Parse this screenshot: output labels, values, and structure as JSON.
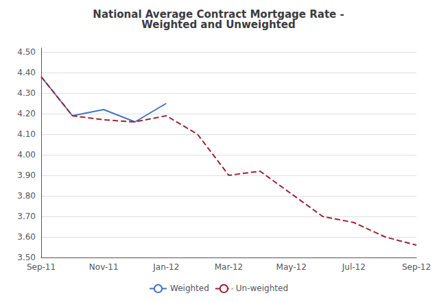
{
  "chart_data": {
    "type": "line",
    "title": "National Average Contract Mortgage Rate -\nWeighted and Unweighted",
    "categories": [
      "Sep-11",
      null,
      "Nov-11",
      null,
      "Jan-12",
      null,
      "Mar-12",
      null,
      "May-12",
      null,
      "Jul-12",
      null,
      "Sep-12"
    ],
    "series": [
      {
        "name": "Weighted",
        "color": "#4472C4",
        "line_style": "solid",
        "values": [
          4.38,
          4.19,
          4.22,
          4.16,
          4.25,
          null,
          null,
          null,
          null,
          null,
          null,
          null,
          null
        ]
      },
      {
        "name": "Un-weighted",
        "color": "#9B2335",
        "line_style": "dashed",
        "values": [
          4.38,
          4.19,
          4.17,
          4.16,
          4.19,
          4.1,
          3.9,
          3.92,
          3.81,
          3.7,
          3.67,
          3.6,
          3.56
        ]
      }
    ],
    "ylim": [
      3.5,
      4.52
    ],
    "yticks": [
      {
        "value": 3.5,
        "label": "3.50"
      },
      {
        "value": 3.6,
        "label": "3.60"
      },
      {
        "value": 3.7,
        "label": "3.70"
      },
      {
        "value": 3.8,
        "label": "3.80"
      },
      {
        "value": 3.9,
        "label": "3.90"
      },
      {
        "value": 4.0,
        "label": "4.00"
      },
      {
        "value": 4.1,
        "label": "4.10"
      },
      {
        "value": 4.2,
        "label": "4.20"
      },
      {
        "value": 4.3,
        "label": "4.30"
      },
      {
        "value": 4.4,
        "label": "4.40"
      },
      {
        "value": 4.5,
        "label": "4.50"
      }
    ],
    "grid": true,
    "legend": "bottom"
  }
}
